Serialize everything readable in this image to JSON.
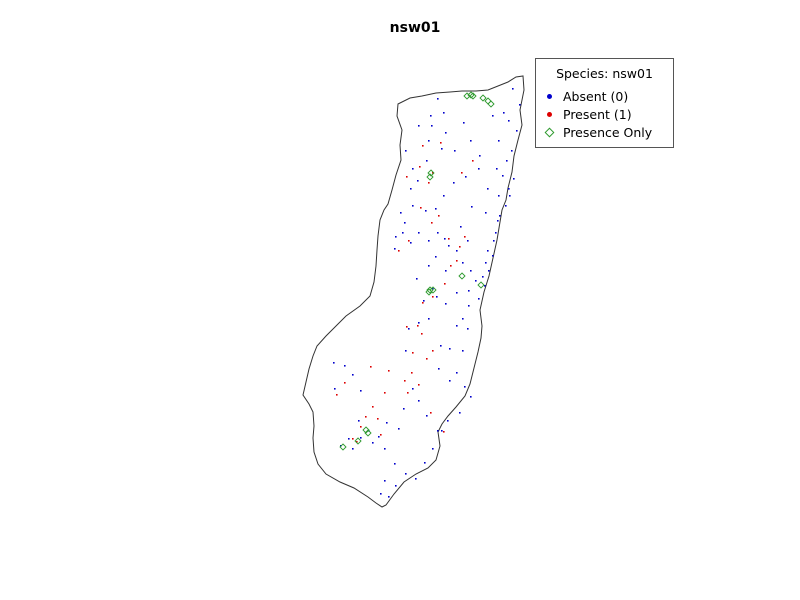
{
  "title": "nsw01",
  "legend": {
    "title": "Species: nsw01",
    "items": [
      {
        "label": "Absent (0)",
        "symbol": "filled-circle",
        "color": "#0000cc"
      },
      {
        "label": "Present (1)",
        "symbol": "filled-circle",
        "color": "#dd0000"
      },
      {
        "label": "Presence Only",
        "symbol": "open-diamond",
        "color": "#2e9a2e"
      }
    ],
    "placement": "top-right"
  },
  "colors": {
    "boundary": "#333333",
    "absent": "#0000cc",
    "present": "#dd0000",
    "presence_only": "#2e9a2e"
  }
}
